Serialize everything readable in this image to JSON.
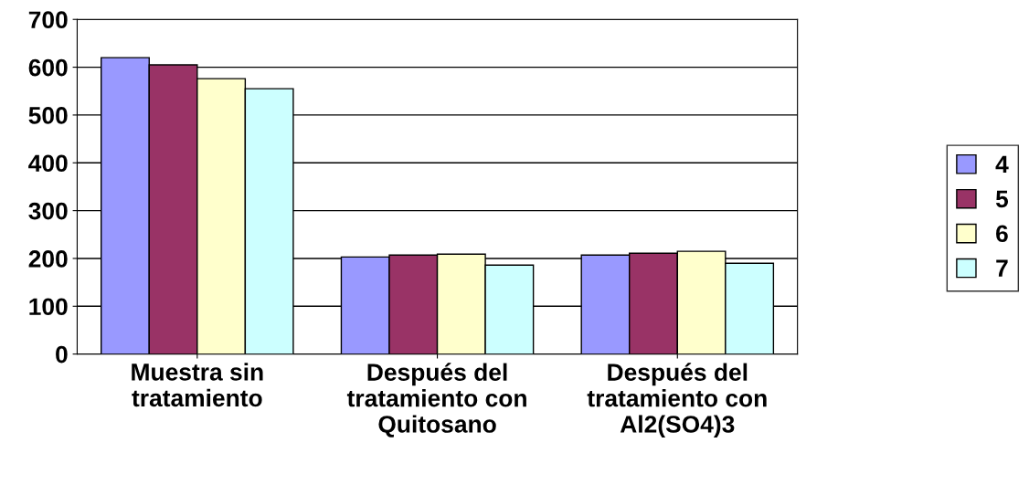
{
  "chart_data": {
    "type": "bar",
    "categories": [
      "Muestra sin\ntratamiento",
      "Después del\ntratamiento con\nQuitosano",
      "Después del\ntratamiento con\nAl2(SO4)3"
    ],
    "series": [
      {
        "name": "4",
        "color": "#9999ff",
        "values": [
          620,
          203,
          207
        ]
      },
      {
        "name": "5",
        "color": "#993366",
        "values": [
          605,
          207,
          211
        ]
      },
      {
        "name": "6",
        "color": "#ffffcc",
        "values": [
          576,
          209,
          215
        ]
      },
      {
        "name": "7",
        "color": "#ccffff",
        "values": [
          555,
          186,
          190
        ]
      }
    ],
    "ylim": [
      0,
      700
    ],
    "yticks": [
      0,
      100,
      200,
      300,
      400,
      500,
      600,
      700
    ],
    "grid": "y",
    "legend": "right"
  }
}
